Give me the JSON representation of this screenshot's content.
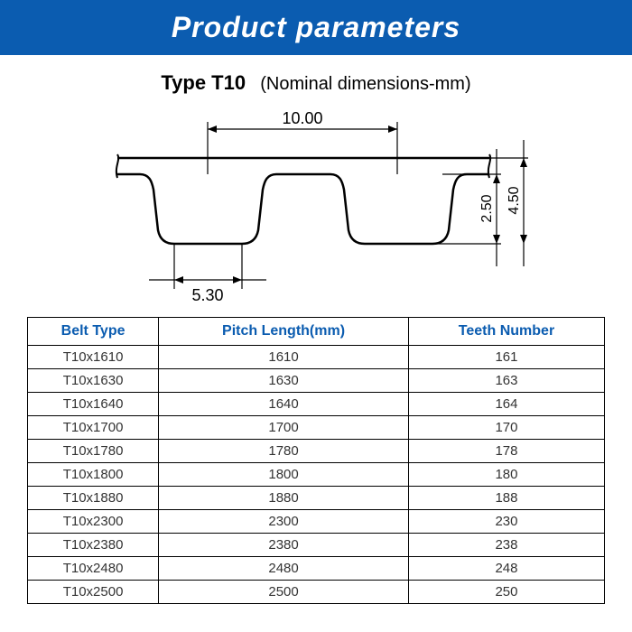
{
  "header": {
    "title": "Product parameters"
  },
  "subtitle": {
    "type": "Type T10",
    "note": "(Nominal dimensions-mm)"
  },
  "diagram": {
    "dim_top": "10.00",
    "dim_bottom": "5.30",
    "dim_right_inner": "2.50",
    "dim_right_outer": "4.50",
    "stroke": "#000000",
    "stroke_width": 2,
    "dim_stroke_width": 1.2
  },
  "table": {
    "columns": [
      "Belt Type",
      "Pitch Length(mm)",
      "Teeth Number"
    ],
    "header_color": "#0b5cb0",
    "rows": [
      [
        "T10x1610",
        "1610",
        "161"
      ],
      [
        "T10x1630",
        "1630",
        "163"
      ],
      [
        "T10x1640",
        "1640",
        "164"
      ],
      [
        "T10x1700",
        "1700",
        "170"
      ],
      [
        "T10x1780",
        "1780",
        "178"
      ],
      [
        "T10x1800",
        "1800",
        "180"
      ],
      [
        "T10x1880",
        "1880",
        "188"
      ],
      [
        "T10x2300",
        "2300",
        "230"
      ],
      [
        "T10x2380",
        "2380",
        "238"
      ],
      [
        "T10x2480",
        "2480",
        "248"
      ],
      [
        "T10x2500",
        "2500",
        "250"
      ]
    ]
  }
}
